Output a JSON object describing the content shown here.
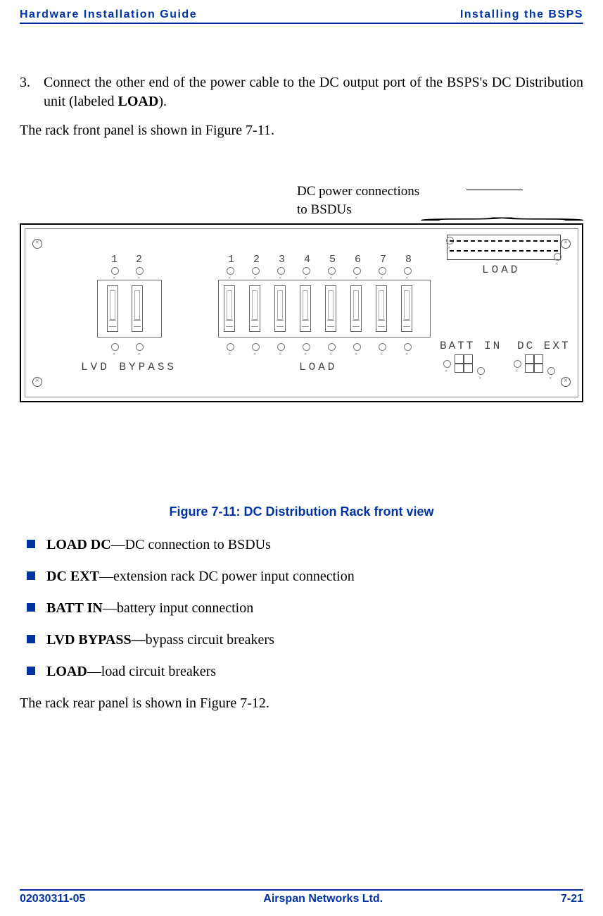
{
  "colors": {
    "brand": "#0033a0",
    "text": "#000000",
    "panel_line": "#666666",
    "mono_text": "#444444",
    "background": "#ffffff"
  },
  "typography": {
    "body_font": "Times New Roman, serif",
    "ui_font": "Arial, Helvetica, sans-serif",
    "mono_font": "Courier New, monospace",
    "body_size_pt": 15,
    "caption_size_pt": 13,
    "header_size_pt": 12
  },
  "header": {
    "left": "Hardware Installation Guide",
    "right": "Installing the BSPS"
  },
  "step": {
    "number": "3.",
    "text_before_bold": "Connect the other end of the power cable to the DC output port of the BSPS's DC Distribution unit (labeled ",
    "bold": "LOAD",
    "text_after_bold": ")."
  },
  "para_intro": "The rack front panel is shown in Figure 7-11.",
  "figure": {
    "callout_line1": "DC power connections",
    "callout_line2": "to BSDUs",
    "lvd_numbers": [
      "1",
      "2"
    ],
    "load_numbers": [
      "1",
      "2",
      "3",
      "4",
      "5",
      "6",
      "7",
      "8"
    ],
    "label_lvd": "LVD BYPASS",
    "label_load_breakers": "LOAD",
    "label_load_conn": "LOAD",
    "label_batt": "BATT IN",
    "label_dcext": "DC EXT"
  },
  "caption": "Figure 7-11:  DC Distribution Rack front view",
  "defs": [
    {
      "term": "LOAD DC",
      "sep": "—",
      "desc": "DC connection to BSDUs"
    },
    {
      "term": "DC EXT",
      "sep": "—",
      "desc": "extension rack DC power input connection"
    },
    {
      "term": "BATT IN",
      "sep": "—",
      "desc": "battery input connection"
    },
    {
      "term": "LVD BYPASS",
      "sep": "—",
      "desc": "bypass circuit breakers"
    },
    {
      "term": "LOAD",
      "sep": "—",
      "desc": "load circuit breakers"
    }
  ],
  "para_outro": "The rack rear panel is shown in Figure 7-12.",
  "footer": {
    "left": "02030311-05",
    "center": "Airspan Networks Ltd.",
    "right": "7-21"
  }
}
